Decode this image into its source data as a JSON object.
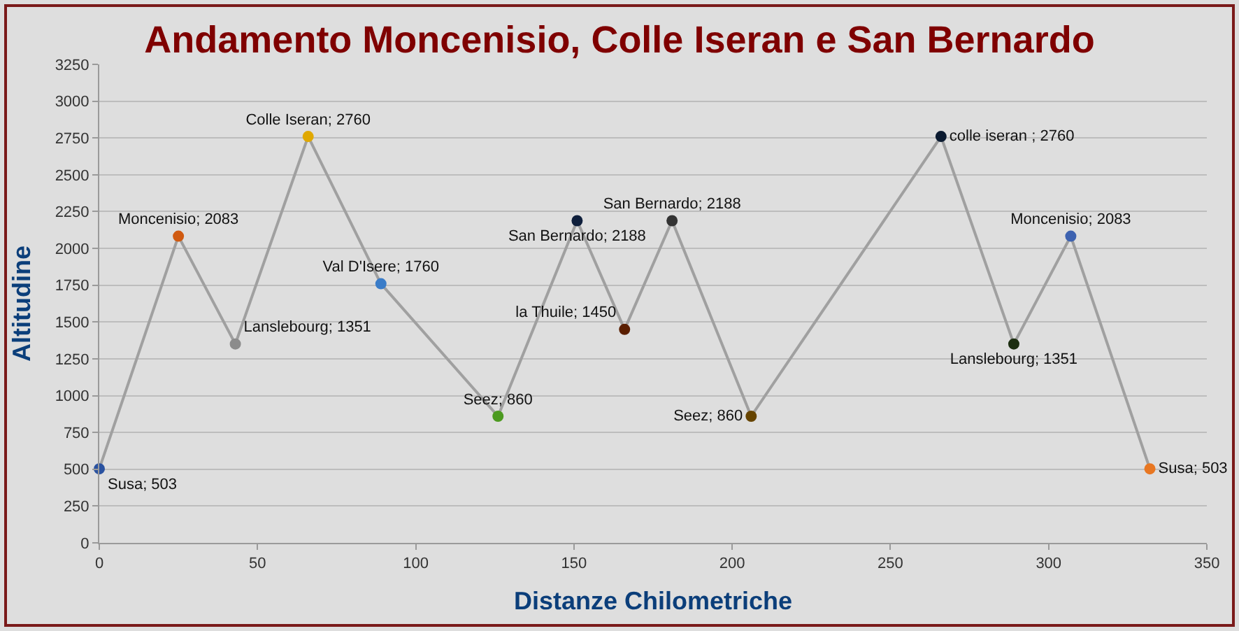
{
  "chart_data": {
    "type": "line",
    "title": "Andamento Moncenisio, Colle Iseran e San Bernardo",
    "xlabel": "Distanze Chilometriche",
    "ylabel": "Altitudine",
    "x": [
      0,
      25,
      43,
      66,
      89,
      126,
      151,
      166,
      181,
      206,
      266,
      289,
      307,
      332
    ],
    "series": [
      {
        "color": "#a0a0a0",
        "values": [
          503,
          2083,
          1351,
          2760,
          1760,
          860,
          2188,
          1450,
          2188,
          860,
          2760,
          1351,
          2083,
          503
        ],
        "colors": [
          "#2a52a0",
          "#d05a10",
          "#8c8c8c",
          "#e0a800",
          "#3a7cc8",
          "#4c9a20",
          "#0f1f3c",
          "#5a1e00",
          "#333333",
          "#664400",
          "#0a1a30",
          "#1c2e10",
          "#3d62b0",
          "#e87722"
        ],
        "value_labels": [
          "Susa; 503",
          "Moncenisio; 2083",
          "Lanslebourg; 1351",
          "Colle Iseran; 2760",
          "Val D'Isere; 1760",
          "Seez; 860",
          "San Bernardo; 2188",
          "la Thuile; 1450",
          "San Bernardo; 2188",
          "Seez; 860",
          "colle iseran ; 2760",
          "Lanslebourg; 1351",
          "Moncenisio; 2083",
          "Susa; 503"
        ]
      }
    ],
    "xlim": [
      0,
      350
    ],
    "xticks": [
      0,
      50,
      100,
      150,
      200,
      250,
      300,
      350
    ],
    "ylim": [
      0,
      3250
    ],
    "yticks": [
      0,
      250,
      500,
      750,
      1000,
      1250,
      1500,
      1750,
      2000,
      2250,
      2500,
      2750,
      3000,
      3250
    ],
    "grid": "y",
    "marker": "circle",
    "line_style": "solid",
    "legend": false
  }
}
